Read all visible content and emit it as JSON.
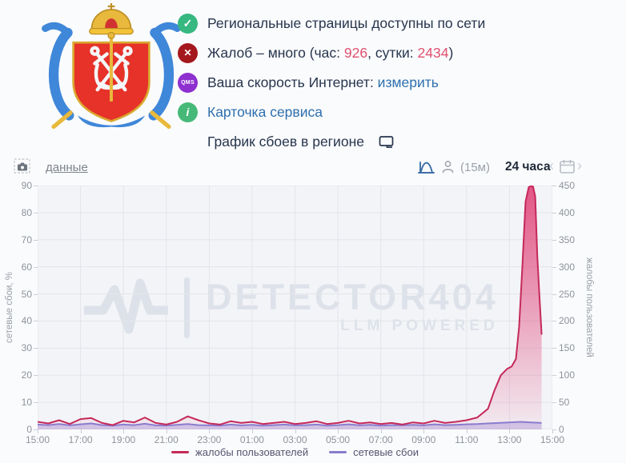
{
  "colors": {
    "accent_link": "#2e6fae",
    "pink_numbers": "#e0516f",
    "check_green": "#36b880",
    "cross_red": "#a4181d",
    "qms_purple": "#8e2fd0",
    "info_green": "#46b978",
    "complaints_line": "#c5295a",
    "failures_line": "#8a7ccf",
    "failures_fill": "#b4a8e0"
  },
  "header": {
    "rows": {
      "availability": {
        "text": "Региональные страницы доступны по сети"
      },
      "complaints": {
        "prefix": "Жалоб – много (час: ",
        "hour": "926",
        "between": ", сутки: ",
        "day": "2434",
        "suffix": ")"
      },
      "speed": {
        "text": "Ваша скорость Интернет: ",
        "link": "измерить",
        "badge": "QMS"
      },
      "card": {
        "link": "Карточка сервиса",
        "badge": "i"
      },
      "graph_title": {
        "text": "График сбоев в регионе"
      },
      "check_glyph": "✓",
      "cross_glyph": "✕"
    }
  },
  "toolbar": {
    "data_link": "данные",
    "interval": "(15м)",
    "range": "24 часа",
    "prev": "‹",
    "next": "›"
  },
  "watermark": {
    "title": "DETECTOR404",
    "subtitle": "LLM POWERED"
  },
  "legend": [
    {
      "label": "жалобы пользователей",
      "color": "#c5295a"
    },
    {
      "label": "сетевые сбои",
      "color": "#8a7ccf"
    }
  ],
  "chart_data": {
    "type": "line",
    "title": "",
    "grid": true,
    "legend_position": "bottom",
    "x_unit": "hours from 15:00, 24h window",
    "x_ticks": [
      "15:00",
      "17:00",
      "19:00",
      "21:00",
      "23:00",
      "01:00",
      "03:00",
      "05:00",
      "07:00",
      "09:00",
      "11:00",
      "13:00",
      "15:00"
    ],
    "y_left": {
      "label": "сетевые сбои, %",
      "min": 0,
      "max": 90,
      "ticks": [
        0,
        10,
        20,
        30,
        40,
        50,
        60,
        70,
        80,
        90
      ]
    },
    "y_right": {
      "label": "жалобы пользователей",
      "min": 0,
      "max": 450,
      "ticks": [
        0,
        50,
        100,
        150,
        200,
        250,
        300,
        350,
        400,
        450
      ]
    },
    "series": [
      {
        "name": "жалобы пользователей",
        "axis": "right",
        "color": "#c5295a",
        "fill": "gradient-pink",
        "x": [
          0,
          0.5,
          1,
          1.5,
          2,
          2.5,
          3,
          3.5,
          4,
          4.5,
          5,
          5.5,
          6,
          6.5,
          7,
          7.5,
          8,
          8.5,
          9,
          9.5,
          10,
          10.5,
          11,
          11.5,
          12,
          12.5,
          13,
          13.5,
          14,
          14.5,
          15,
          15.5,
          16,
          16.5,
          17,
          17.5,
          18,
          18.5,
          19,
          19.5,
          20,
          20.5,
          21,
          21.3,
          21.6,
          21.9,
          22.1,
          22.3,
          22.45,
          22.6,
          22.75,
          22.9,
          23,
          23.1,
          23.2,
          23.3,
          23.4,
          23.5
        ],
        "values": [
          14,
          11,
          17,
          10,
          19,
          21,
          12,
          8,
          16,
          13,
          22,
          12,
          9,
          14,
          24,
          17,
          11,
          9,
          15,
          12,
          14,
          10,
          12,
          14,
          10,
          12,
          15,
          10,
          12,
          16,
          11,
          13,
          10,
          12,
          9,
          13,
          11,
          16,
          12,
          14,
          17,
          22,
          38,
          72,
          100,
          112,
          116,
          130,
          190,
          300,
          420,
          447,
          449,
          448,
          430,
          320,
          245,
          175
        ]
      },
      {
        "name": "сетевые сбои",
        "axis": "left",
        "color": "#8a7ccf",
        "fill": "#b4a8e0",
        "x": [
          0,
          0.5,
          1,
          1.5,
          2,
          2.5,
          3,
          3.5,
          4,
          4.5,
          5,
          5.5,
          6,
          6.5,
          7,
          7.5,
          8,
          8.5,
          9,
          9.5,
          10,
          10.5,
          11,
          11.5,
          12,
          12.5,
          13,
          13.5,
          14,
          14.5,
          15,
          15.5,
          16,
          16.5,
          17,
          17.5,
          18,
          18.5,
          19,
          19.5,
          20,
          20.5,
          21,
          21.5,
          22,
          22.5,
          23,
          23.5
        ],
        "values": [
          1.8,
          1.6,
          2.0,
          1.5,
          1.9,
          2.2,
          1.6,
          1.4,
          1.8,
          1.6,
          2.1,
          1.5,
          1.4,
          1.7,
          2.0,
          1.6,
          1.5,
          1.4,
          1.8,
          1.5,
          1.7,
          1.4,
          1.6,
          1.8,
          1.5,
          1.6,
          1.8,
          1.4,
          1.6,
          1.9,
          1.5,
          1.7,
          1.4,
          1.6,
          1.5,
          1.7,
          1.5,
          1.9,
          1.6,
          1.7,
          1.9,
          2.0,
          2.2,
          2.4,
          2.6,
          2.8,
          2.6,
          2.4
        ]
      }
    ]
  }
}
